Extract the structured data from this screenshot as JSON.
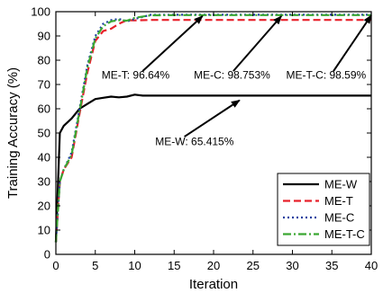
{
  "chart_data": {
    "type": "line",
    "xlabel": "Iteration",
    "ylabel": "Training Accuracy (%)",
    "xlim": [
      0,
      40
    ],
    "ylim": [
      0,
      100
    ],
    "xticks": [
      0,
      5,
      10,
      15,
      20,
      25,
      30,
      35,
      40
    ],
    "yticks": [
      0,
      10,
      20,
      30,
      40,
      50,
      60,
      70,
      80,
      90,
      100
    ],
    "grid": false,
    "legend_position": "bottom-right",
    "series": [
      {
        "name": "ME-W",
        "color": "#000000",
        "dash": "solid",
        "x": [
          0,
          0.5,
          1,
          2,
          3,
          4,
          5,
          6,
          7,
          8,
          9,
          10,
          11,
          12,
          15,
          20,
          25,
          30,
          35,
          40
        ],
        "y": [
          5,
          50,
          53,
          56,
          60,
          62,
          64,
          64.5,
          65,
          64.7,
          65,
          65.8,
          65.4,
          65.4,
          65.4,
          65.4,
          65.4,
          65.4,
          65.4,
          65.4
        ]
      },
      {
        "name": "ME-T",
        "color": "#e8202a",
        "dash": "dashed",
        "x": [
          0,
          0.5,
          1,
          2,
          3,
          4,
          5,
          6,
          7,
          8,
          9,
          10,
          12,
          15,
          20,
          25,
          30,
          35,
          40
        ],
        "y": [
          5,
          30,
          35,
          40,
          58,
          75,
          88,
          92,
          93,
          95,
          96.5,
          96.4,
          96.6,
          96.6,
          96.6,
          96.6,
          96.6,
          96.6,
          96.6
        ]
      },
      {
        "name": "ME-C",
        "color": "#1f3fa0",
        "dash": "dotted",
        "x": [
          0,
          0.5,
          1,
          2,
          3,
          4,
          5,
          6,
          7,
          8,
          9,
          10,
          12,
          15,
          20,
          25,
          30,
          35,
          40
        ],
        "y": [
          5,
          30,
          35,
          42,
          60,
          78,
          90,
          95,
          96.5,
          97,
          96,
          97,
          98.7,
          98.75,
          98.75,
          98.75,
          98.75,
          98.75,
          98.75
        ]
      },
      {
        "name": "ME-T-C",
        "color": "#3aa832",
        "dash": "dashdot",
        "x": [
          0,
          0.5,
          1,
          2,
          3,
          4,
          5,
          6,
          7,
          8,
          9,
          10,
          12,
          15,
          20,
          25,
          30,
          35,
          40
        ],
        "y": [
          5,
          30,
          35,
          41,
          59,
          77,
          89,
          94,
          96,
          96.5,
          96.3,
          97.5,
          98.5,
          98.6,
          98.6,
          98.6,
          98.6,
          98.6,
          98.6
        ]
      }
    ],
    "annotations": [
      {
        "text": "ME-T: 96.64%",
        "label_x": 5.8,
        "label_y": 72.5,
        "arrow_from": [
          11,
          75.5
        ],
        "arrow_to": [
          18.6,
          98.2
        ]
      },
      {
        "text": "ME-C: 98.753%",
        "label_x": 17.5,
        "label_y": 72.5,
        "arrow_from": [
          22.5,
          75.5
        ],
        "arrow_to": [
          28.6,
          98.2
        ]
      },
      {
        "text": "ME-T-C: 98.59%",
        "label_x": 29.2,
        "label_y": 72.5,
        "arrow_from": [
          35.2,
          75.5
        ],
        "arrow_to": [
          40,
          98.5
        ]
      },
      {
        "text": "ME-W: 65.415%",
        "label_x": 12.6,
        "label_y": 45,
        "arrow_from": [
          16.3,
          48.5
        ],
        "arrow_to": [
          23.3,
          63.5
        ]
      }
    ]
  }
}
